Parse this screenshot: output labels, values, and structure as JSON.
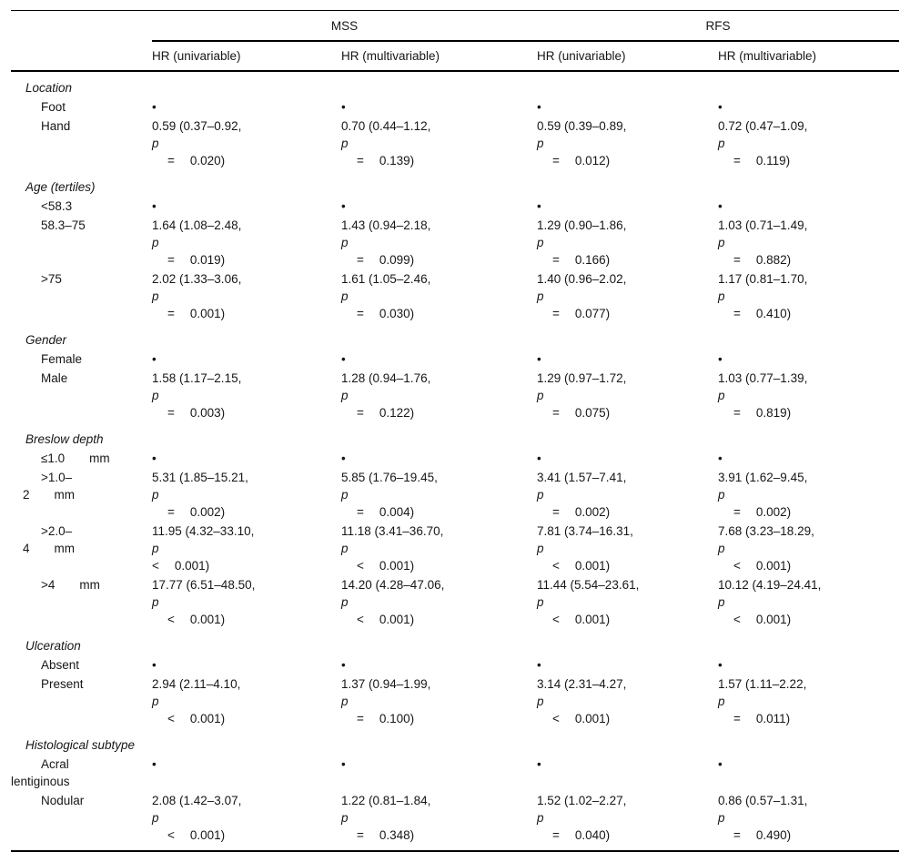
{
  "table": {
    "groups": [
      {
        "label": "MSS"
      },
      {
        "label": "RFS"
      }
    ],
    "col_headers": [
      "HR (univariable)",
      "HR (multivariable)",
      "HR (univariable)",
      "HR (multivariable)"
    ],
    "reference_marker": "•",
    "sections": [
      {
        "label": "Location",
        "rows": [
          {
            "label": [
              {
                "t": "Foot",
                "cls": "item"
              }
            ],
            "cells": [
              [
                {
                  "t": "•"
                }
              ],
              [
                {
                  "t": "•"
                }
              ],
              [
                {
                  "t": "•"
                }
              ],
              [
                {
                  "t": "•"
                }
              ]
            ]
          },
          {
            "label": [
              {
                "t": "Hand",
                "cls": "item"
              }
            ],
            "cells": [
              [
                {
                  "t": "0.59 (0.37–0.92,"
                },
                {
                  "p": [
                    "p",
                    "=",
                    "0.020)"
                  ]
                }
              ],
              [
                {
                  "t": "0.70 (0.44–1.12,"
                },
                {
                  "p": [
                    "p",
                    "=",
                    "0.139)"
                  ]
                }
              ],
              [
                {
                  "t": "0.59 (0.39–0.89,"
                },
                {
                  "p": [
                    "p",
                    "=",
                    "0.012)"
                  ]
                }
              ],
              [
                {
                  "t": "0.72 (0.47–1.09,"
                },
                {
                  "p": [
                    "p",
                    "=",
                    "0.119)"
                  ]
                }
              ]
            ]
          }
        ]
      },
      {
        "label": "Age (tertiles)",
        "rows": [
          {
            "label": [
              {
                "t": "<58.3",
                "cls": "item"
              }
            ],
            "cells": [
              [
                {
                  "t": "•"
                }
              ],
              [
                {
                  "t": "•"
                }
              ],
              [
                {
                  "t": "•"
                }
              ],
              [
                {
                  "t": "•"
                }
              ]
            ]
          },
          {
            "label": [
              {
                "t": "58.3–75",
                "cls": "item"
              }
            ],
            "cells": [
              [
                {
                  "t": "1.64 (1.08–2.48,"
                },
                {
                  "p": [
                    "p",
                    "=",
                    "0.019)"
                  ]
                }
              ],
              [
                {
                  "t": "1.43 (0.94–2.18,"
                },
                {
                  "p": [
                    "p",
                    "=",
                    "0.099)"
                  ]
                }
              ],
              [
                {
                  "t": "1.29 (0.90–1.86,"
                },
                {
                  "p": [
                    "p",
                    "=",
                    "0.166)"
                  ]
                }
              ],
              [
                {
                  "t": "1.03 (0.71–1.49,"
                },
                {
                  "p": [
                    "p",
                    "=",
                    "0.882)"
                  ]
                }
              ]
            ]
          },
          {
            "label": [
              {
                "t": ">75",
                "cls": "item"
              }
            ],
            "cells": [
              [
                {
                  "t": "2.02 (1.33–3.06,"
                },
                {
                  "p": [
                    "p",
                    "=",
                    "0.001)"
                  ]
                }
              ],
              [
                {
                  "t": "1.61 (1.05–2.46,"
                },
                {
                  "p": [
                    "p",
                    "=",
                    "0.030)"
                  ]
                }
              ],
              [
                {
                  "t": "1.40 (0.96–2.02,"
                },
                {
                  "p": [
                    "p",
                    "=",
                    "0.077)"
                  ]
                }
              ],
              [
                {
                  "t": "1.17 (0.81–1.70,"
                },
                {
                  "p": [
                    "p",
                    "=",
                    "0.410)"
                  ]
                }
              ]
            ]
          }
        ]
      },
      {
        "label": "Gender",
        "rows": [
          {
            "label": [
              {
                "t": "Female",
                "cls": "item"
              }
            ],
            "cells": [
              [
                {
                  "t": "•"
                }
              ],
              [
                {
                  "t": "•"
                }
              ],
              [
                {
                  "t": "•"
                }
              ],
              [
                {
                  "t": "•"
                }
              ]
            ]
          },
          {
            "label": [
              {
                "t": "Male",
                "cls": "item"
              }
            ],
            "cells": [
              [
                {
                  "t": "1.58 (1.17–2.15,"
                },
                {
                  "p": [
                    "p",
                    "=",
                    "0.003)"
                  ]
                }
              ],
              [
                {
                  "t": "1.28 (0.94–1.76,"
                },
                {
                  "p": [
                    "p",
                    "=",
                    "0.122)"
                  ]
                }
              ],
              [
                {
                  "t": "1.29 (0.97–1.72,"
                },
                {
                  "p": [
                    "p",
                    "=",
                    "0.075)"
                  ]
                }
              ],
              [
                {
                  "t": "1.03 (0.77–1.39,"
                },
                {
                  "p": [
                    "p",
                    "=",
                    "0.819)"
                  ]
                }
              ]
            ]
          }
        ]
      },
      {
        "label": "Breslow depth",
        "rows": [
          {
            "label": [
              {
                "t": "≤1.0  mm",
                "cls": "item"
              }
            ],
            "cells": [
              [
                {
                  "t": "•"
                }
              ],
              [
                {
                  "t": "•"
                }
              ],
              [
                {
                  "t": "•"
                }
              ],
              [
                {
                  "t": "•"
                }
              ]
            ]
          },
          {
            "label": [
              {
                "t": ">1.0–",
                "cls": "item"
              },
              {
                "t": "2  mm",
                "cls": "out"
              }
            ],
            "cells": [
              [
                {
                  "t": "5.31 (1.85–15.21,"
                },
                {
                  "p": [
                    "p",
                    "=",
                    "0.002)"
                  ]
                }
              ],
              [
                {
                  "t": "5.85 (1.76–19.45,"
                },
                {
                  "p": [
                    "p",
                    "=",
                    "0.004)"
                  ]
                }
              ],
              [
                {
                  "t": "3.41 (1.57–7.41,"
                },
                {
                  "p": [
                    "p",
                    "=",
                    "0.002)"
                  ]
                }
              ],
              [
                {
                  "t": "3.91 (1.62–9.45,"
                },
                {
                  "p": [
                    "p",
                    "=",
                    "0.002)"
                  ]
                }
              ]
            ]
          },
          {
            "label": [
              {
                "t": ">2.0–",
                "cls": "item"
              },
              {
                "t": "4  mm",
                "cls": "out"
              }
            ],
            "cells": [
              [
                {
                  "t": "11.95 (4.32–33.10,",
                  "tp": true
                },
                {
                  "p": [
                    "",
                    "<",
                    "0.001)"
                  ]
                }
              ],
              [
                {
                  "t": "11.18 (3.41–36.70,"
                },
                {
                  "p": [
                    "p",
                    "<",
                    "0.001)"
                  ]
                }
              ],
              [
                {
                  "t": "7.81 (3.74–16.31,"
                },
                {
                  "p": [
                    "p",
                    "<",
                    "0.001)"
                  ]
                }
              ],
              [
                {
                  "t": "7.68 (3.23–18.29,"
                },
                {
                  "p": [
                    "p",
                    "<",
                    "0.001)"
                  ]
                }
              ]
            ]
          },
          {
            "label": [
              {
                "t": ">4  mm",
                "cls": "item"
              }
            ],
            "cells": [
              [
                {
                  "t": "17.77 (6.51–48.50,"
                },
                {
                  "p": [
                    "p",
                    "<",
                    "0.001)"
                  ]
                }
              ],
              [
                {
                  "t": "14.20 (4.28–47.06,"
                },
                {
                  "p": [
                    "p",
                    "<",
                    "0.001)"
                  ]
                }
              ],
              [
                {
                  "t": "11.44 (5.54–23.61,"
                },
                {
                  "p": [
                    "p",
                    "<",
                    "0.001)"
                  ]
                }
              ],
              [
                {
                  "t": "10.12 (4.19–24.41,"
                },
                {
                  "p": [
                    "p",
                    "<",
                    "0.001)"
                  ]
                }
              ]
            ]
          }
        ]
      },
      {
        "label": "Ulceration",
        "rows": [
          {
            "label": [
              {
                "t": "Absent",
                "cls": "item"
              }
            ],
            "cells": [
              [
                {
                  "t": "•"
                }
              ],
              [
                {
                  "t": "•"
                }
              ],
              [
                {
                  "t": "•"
                }
              ],
              [
                {
                  "t": "•"
                }
              ]
            ]
          },
          {
            "label": [
              {
                "t": "Present",
                "cls": "item"
              }
            ],
            "cells": [
              [
                {
                  "t": "2.94 (2.11–4.10,"
                },
                {
                  "p": [
                    "p",
                    "<",
                    "0.001)"
                  ]
                }
              ],
              [
                {
                  "t": "1.37 (0.94–1.99,"
                },
                {
                  "p": [
                    "p",
                    "=",
                    "0.100)"
                  ]
                }
              ],
              [
                {
                  "t": "3.14 (2.31–4.27,"
                },
                {
                  "p": [
                    "p",
                    "<",
                    "0.001)"
                  ]
                }
              ],
              [
                {
                  "t": "1.57 (1.11–2.22,"
                },
                {
                  "p": [
                    "p",
                    "=",
                    "0.011)"
                  ]
                }
              ]
            ]
          }
        ]
      },
      {
        "label": "Histological subtype",
        "rows": [
          {
            "label": [
              {
                "t": "Acral",
                "cls": "item"
              },
              {
                "t": "lentiginous",
                "cls": "flush"
              }
            ],
            "cells": [
              [
                {
                  "t": "•"
                }
              ],
              [
                {
                  "t": "•"
                }
              ],
              [
                {
                  "t": "•"
                }
              ],
              [
                {
                  "t": "•"
                }
              ]
            ]
          },
          {
            "label": [
              {
                "t": "Nodular",
                "cls": "item"
              }
            ],
            "cells": [
              [
                {
                  "t": "2.08 (1.42–3.07,"
                },
                {
                  "p": [
                    "p",
                    "<",
                    "0.001)"
                  ]
                }
              ],
              [
                {
                  "t": "1.22 (0.81–1.84,"
                },
                {
                  "p": [
                    "p",
                    "=",
                    "0.348)"
                  ]
                }
              ],
              [
                {
                  "t": "1.52 (1.02–2.27,"
                },
                {
                  "p": [
                    "p",
                    "=",
                    "0.040)"
                  ]
                }
              ],
              [
                {
                  "t": "0.86 (0.57–1.31,"
                },
                {
                  "p": [
                    "p",
                    "=",
                    "0.490)"
                  ]
                }
              ]
            ]
          }
        ]
      }
    ]
  }
}
